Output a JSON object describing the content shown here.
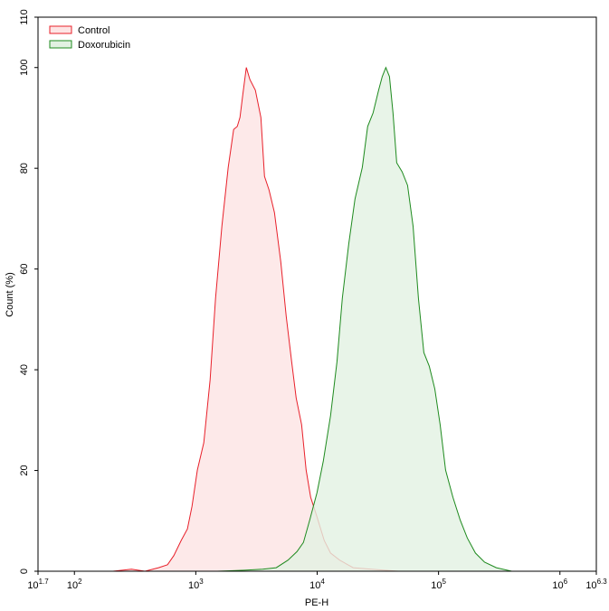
{
  "chart_data": {
    "type": "histogram-overlay",
    "xlabel": "PE-H",
    "ylabel": "Count (%)",
    "xscale": "log",
    "xlim": [
      50.1187,
      1995262.3
    ],
    "ylim": [
      0,
      110
    ],
    "xticks": [
      {
        "value": 50.1187,
        "label": "10",
        "exponent": "1.7"
      },
      {
        "value": 100,
        "label": "10",
        "exponent": "2"
      },
      {
        "value": 1000,
        "label": "10",
        "exponent": "3"
      },
      {
        "value": 10000,
        "label": "10",
        "exponent": "4"
      },
      {
        "value": 100000,
        "label": "10",
        "exponent": "5"
      },
      {
        "value": 1000000,
        "label": "10",
        "exponent": "6"
      },
      {
        "value": 1995262.3,
        "label": "10",
        "exponent": "6.3"
      }
    ],
    "yticks": [
      0,
      20,
      40,
      60,
      80,
      100,
      110
    ],
    "legend": "upper-left",
    "series": [
      {
        "name": "Control",
        "color": "#e8202a",
        "fill": "#fde4e4",
        "x": [
          208,
          295,
          381,
          493,
          585,
          659,
          757,
          853,
          931,
          1031,
          1164,
          1312,
          1455,
          1641,
          1849,
          2051,
          2198,
          2313,
          2438,
          2608,
          2793,
          3097,
          3436,
          3681,
          4009,
          4446,
          5012,
          5559,
          6166,
          6714,
          7447,
          8110,
          8831,
          9971,
          11429,
          12882,
          15311,
          19815,
          27929,
          46774,
          78343
        ],
        "values": [
          0,
          0.4,
          0,
          0.7,
          1.3,
          3.1,
          6.1,
          8.4,
          12.9,
          20.1,
          25.5,
          38.0,
          54.2,
          68.5,
          80.2,
          87.7,
          88.3,
          90.1,
          94.6,
          100,
          97.6,
          95.5,
          90.1,
          78.4,
          75.7,
          71.2,
          61.4,
          50.6,
          41.6,
          34.4,
          29.1,
          20.1,
          14.7,
          10.8,
          6.1,
          3.6,
          2.2,
          0.7,
          0.4,
          0,
          0
        ]
      },
      {
        "name": "Doxorubicin",
        "color": "#1e8a1e",
        "fill": "#e2f1e2",
        "x": [
          1506,
          2520,
          3556,
          4603,
          5754,
          6823,
          7709,
          8690,
          9971,
          11246,
          12882,
          14555,
          16106,
          18197,
          20512,
          23550,
          26062,
          28907,
          32062,
          34356,
          36813,
          39446,
          42170,
          45186,
          50119,
          55590,
          61660,
          68234,
          75683,
          83946,
          93111,
          103039,
          114288,
          131220,
          150661,
          172584,
          201372,
          239332,
          299226,
          400867,
          616595
        ],
        "values": [
          0,
          0.2,
          0.4,
          0.7,
          2.2,
          3.9,
          5.7,
          10.2,
          15.6,
          21.9,
          30.9,
          41.6,
          54.2,
          65.0,
          73.9,
          80.2,
          88.3,
          91.0,
          95.5,
          98.2,
          100,
          98.2,
          91.0,
          81.1,
          79.3,
          76.6,
          68.5,
          54.2,
          43.4,
          40.7,
          36.2,
          29.1,
          20.1,
          14.7,
          10.2,
          6.6,
          3.6,
          1.8,
          0.7,
          0,
          0
        ]
      }
    ]
  }
}
